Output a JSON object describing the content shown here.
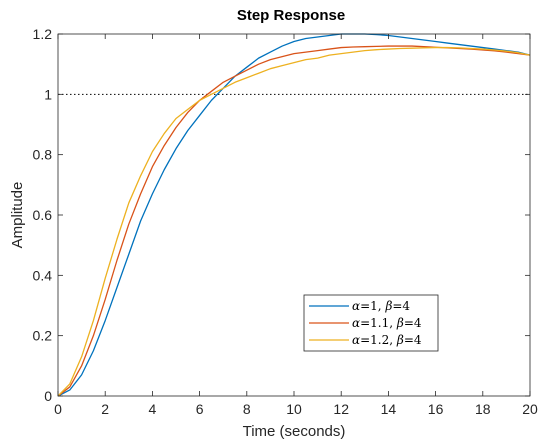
{
  "chart_data": {
    "type": "line",
    "title": "Step Response",
    "xlabel": "Time (seconds)",
    "ylabel": "Amplitude",
    "xlim": [
      0,
      20
    ],
    "ylim": [
      0,
      1.2
    ],
    "xticks": [
      0,
      2,
      4,
      6,
      8,
      10,
      12,
      14,
      16,
      18,
      20
    ],
    "yticks": [
      0,
      0.2,
      0.4,
      0.6,
      0.8,
      1,
      1.2
    ],
    "xtick_labels": [
      "0",
      "2",
      "4",
      "6",
      "8",
      "10",
      "12",
      "14",
      "16",
      "18",
      "20"
    ],
    "ytick_labels": [
      "0",
      "0.2",
      "0.4",
      "0.6",
      "0.8",
      "1",
      "1.2"
    ],
    "grid": false,
    "reference_line": {
      "y": 1,
      "style": "dotted",
      "color": "#000000"
    },
    "legend": {
      "position": "lower-right",
      "entries": [
        {
          "alpha_sym": "α",
          "alpha_val": "=1, ",
          "beta_sym": "β",
          "beta_val": "=4"
        },
        {
          "alpha_sym": "α",
          "alpha_val": "=1.1, ",
          "beta_sym": "β",
          "beta_val": "=4"
        },
        {
          "alpha_sym": "α",
          "alpha_val": "=1.2, ",
          "beta_sym": "β",
          "beta_val": "=4"
        }
      ]
    },
    "x": [
      0,
      0.5,
      1,
      1.5,
      2,
      2.5,
      3,
      3.5,
      4,
      4.5,
      5,
      5.5,
      6,
      6.5,
      7,
      7.5,
      8,
      8.5,
      9,
      9.5,
      10,
      10.5,
      11,
      11.5,
      12,
      12.5,
      13,
      13.5,
      14,
      14.5,
      15,
      15.5,
      16,
      16.5,
      17,
      17.5,
      18,
      18.5,
      19,
      19.5,
      20
    ],
    "series": [
      {
        "color": "#0072BD",
        "y": [
          0,
          0.02,
          0.07,
          0.15,
          0.25,
          0.36,
          0.47,
          0.58,
          0.67,
          0.75,
          0.82,
          0.88,
          0.93,
          0.98,
          1.02,
          1.06,
          1.09,
          1.12,
          1.14,
          1.16,
          1.175,
          1.185,
          1.19,
          1.195,
          1.2,
          1.2,
          1.2,
          1.198,
          1.195,
          1.19,
          1.185,
          1.18,
          1.175,
          1.17,
          1.165,
          1.16,
          1.155,
          1.15,
          1.145,
          1.14,
          1.13
        ]
      },
      {
        "color": "#D95319",
        "y": [
          0,
          0.03,
          0.1,
          0.2,
          0.32,
          0.45,
          0.57,
          0.67,
          0.76,
          0.83,
          0.89,
          0.94,
          0.98,
          1.01,
          1.04,
          1.06,
          1.08,
          1.1,
          1.115,
          1.125,
          1.135,
          1.14,
          1.145,
          1.15,
          1.155,
          1.157,
          1.158,
          1.159,
          1.16,
          1.16,
          1.16,
          1.158,
          1.156,
          1.154,
          1.152,
          1.15,
          1.147,
          1.144,
          1.14,
          1.135,
          1.13
        ]
      },
      {
        "color": "#EDB120",
        "y": [
          0,
          0.04,
          0.13,
          0.25,
          0.39,
          0.52,
          0.64,
          0.73,
          0.81,
          0.87,
          0.92,
          0.95,
          0.98,
          1.0,
          1.02,
          1.04,
          1.055,
          1.07,
          1.085,
          1.095,
          1.105,
          1.115,
          1.12,
          1.13,
          1.135,
          1.14,
          1.145,
          1.148,
          1.15,
          1.152,
          1.153,
          1.154,
          1.155,
          1.155,
          1.154,
          1.152,
          1.15,
          1.147,
          1.143,
          1.138,
          1.13
        ]
      }
    ]
  }
}
